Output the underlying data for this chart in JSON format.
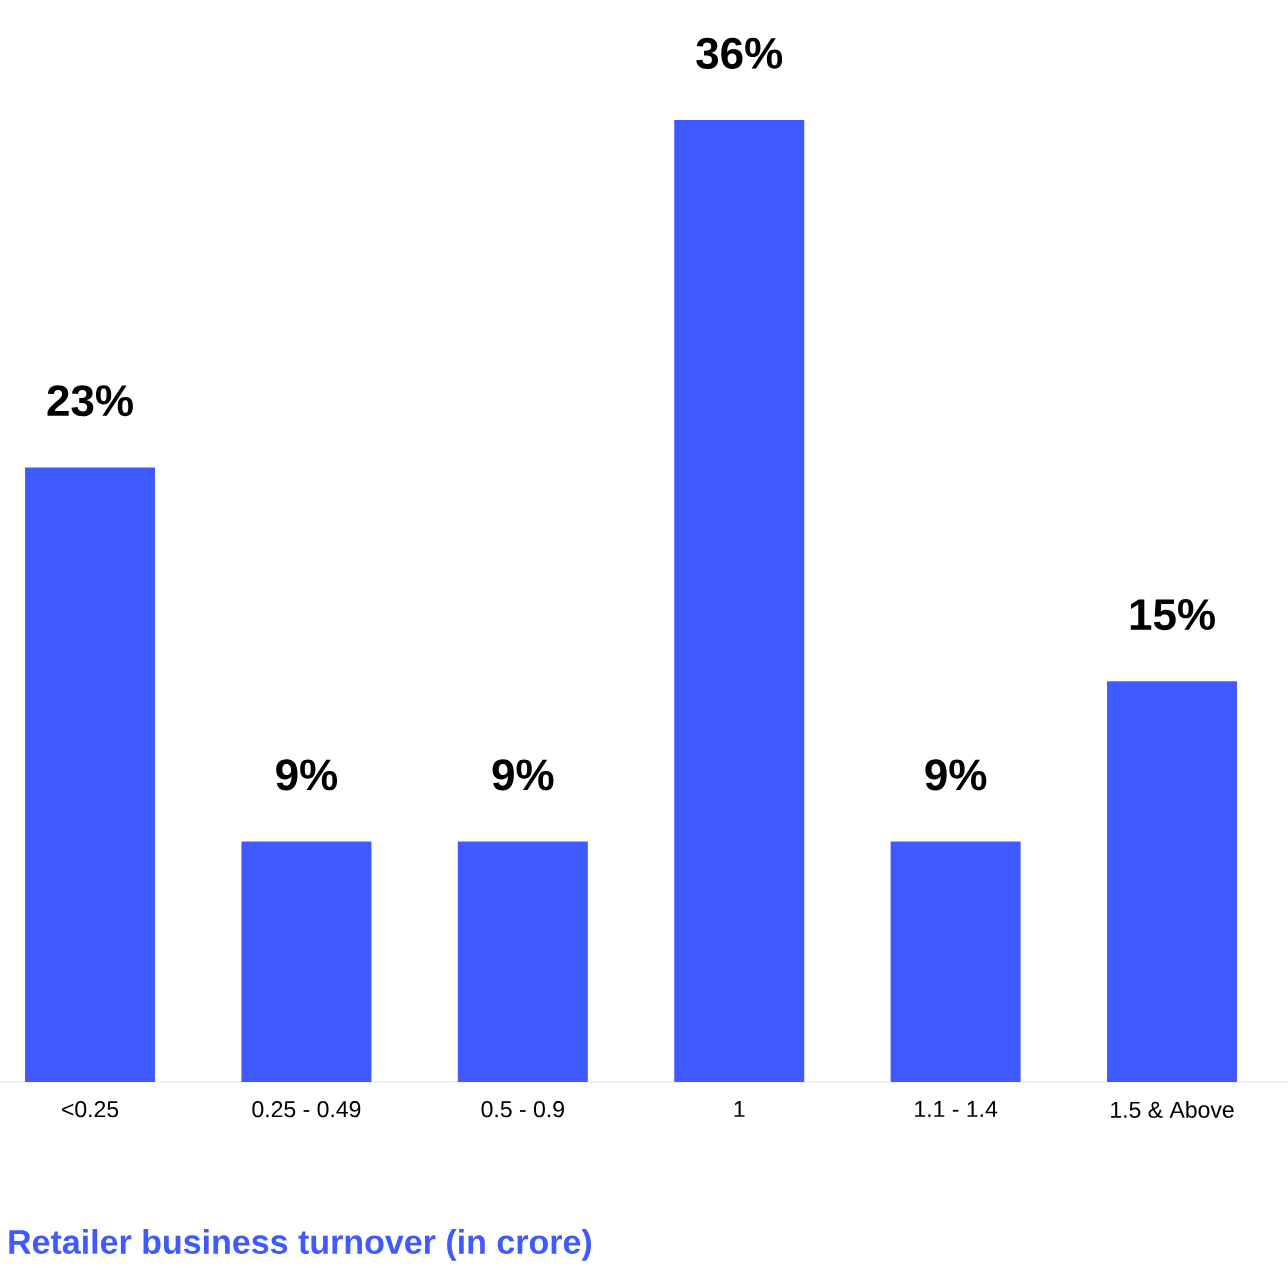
{
  "chart_data": {
    "type": "bar",
    "xlabel": "Retailer business turnover (in crore)",
    "categories": [
      "<0.25",
      "0.25 - 0.49",
      "0.5 - 0.9",
      "1",
      "1.1 - 1.4",
      "1.5 & Above"
    ],
    "values": [
      23,
      9,
      9,
      36,
      9,
      15
    ],
    "value_labels": [
      "23%",
      "9%",
      "9%",
      "36%",
      "9%",
      "15%"
    ],
    "color": "#3f5bff"
  }
}
